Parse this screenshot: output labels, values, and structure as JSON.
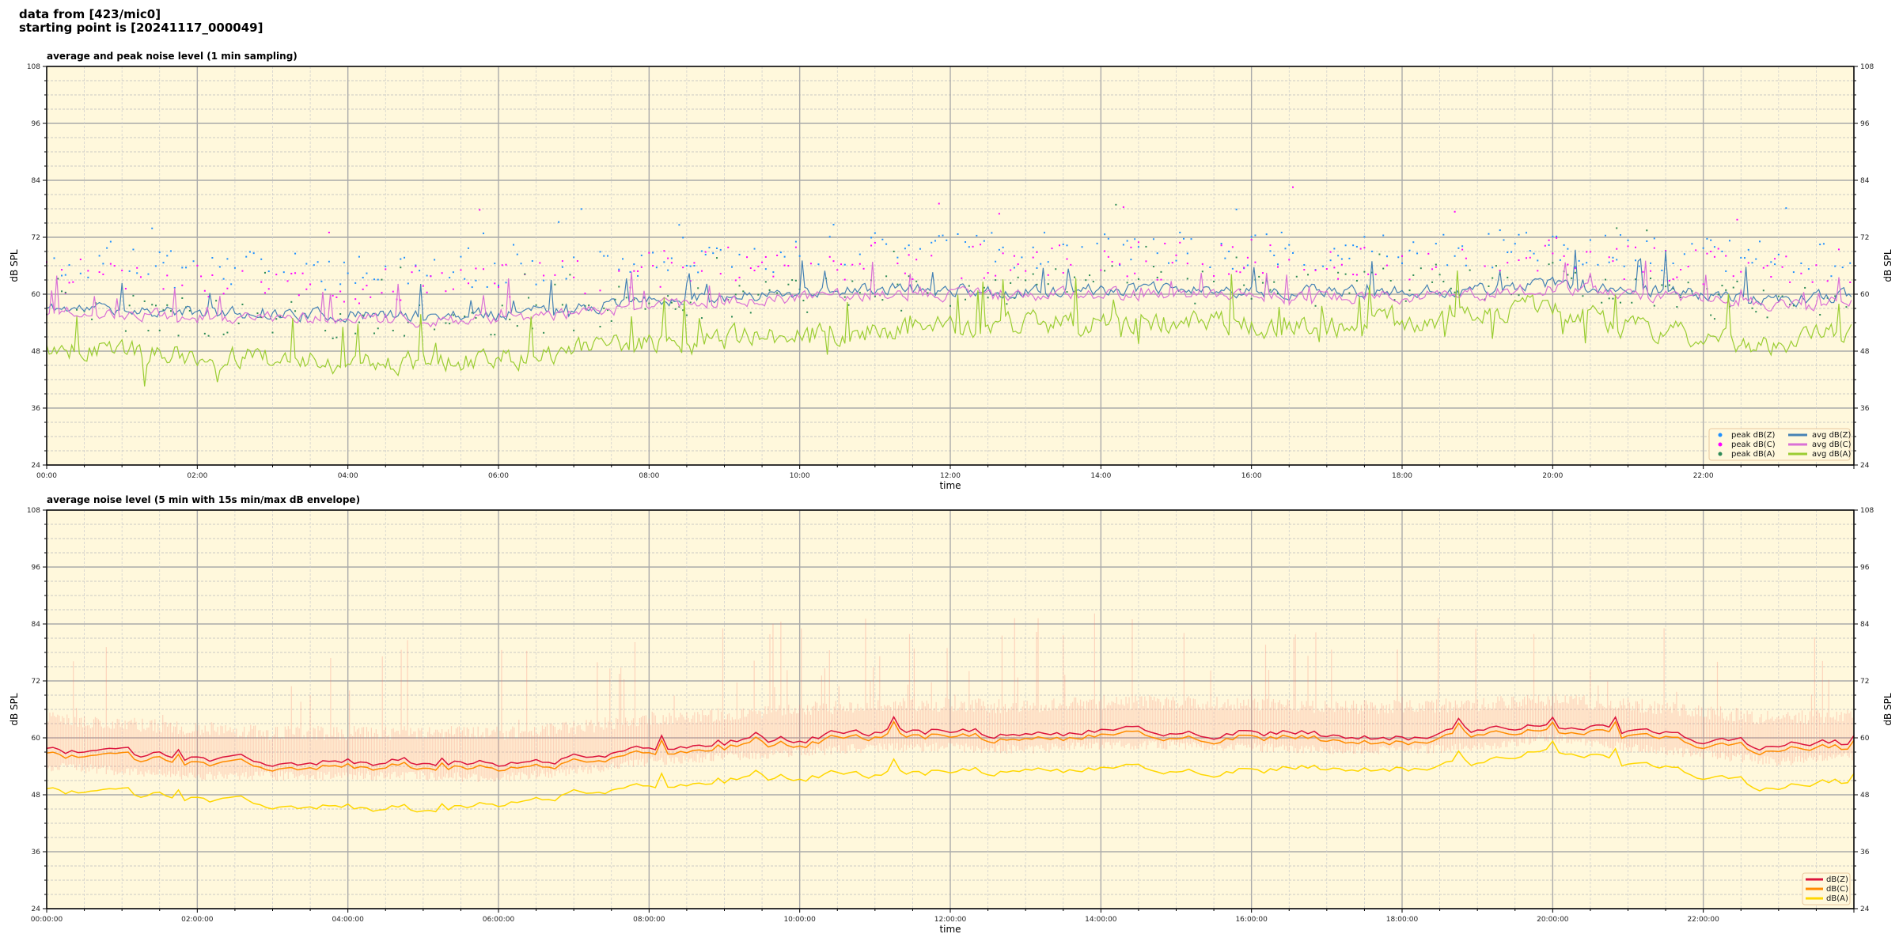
{
  "header": {
    "line1": "data from [423/mic0]",
    "line2": "starting point is [20241117_000049]"
  },
  "colors": {
    "plot_background": "#fff8dc",
    "peak_z": "#1e90ff",
    "peak_c": "#ff00ff",
    "peak_a": "#2e8b57",
    "avg_z": "#4682b4",
    "avg_c": "#da70d6",
    "avg_a": "#9acd32",
    "z": "#dc143c",
    "c": "#ff8c00",
    "a": "#ffd700",
    "envelope": "#fa8072"
  },
  "chart_data": [
    {
      "type": "line",
      "title": "average and peak noise level (1 min sampling)",
      "xlabel": "time",
      "ylabel": "dB SPL",
      "xlim_hours": [
        0,
        24
      ],
      "ylim": [
        24,
        108
      ],
      "yticks": [
        24,
        36,
        48,
        60,
        72,
        84,
        96,
        108
      ],
      "xtick_labels": [
        "00:00",
        "02:00",
        "04:00",
        "06:00",
        "08:00",
        "10:00",
        "12:00",
        "14:00",
        "16:00",
        "18:00",
        "20:00",
        "22:00"
      ],
      "grid": true,
      "legend_position": "bottom-right",
      "x_hours": [
        0,
        1,
        2,
        3,
        4,
        5,
        6,
        7,
        8,
        9,
        10,
        11,
        12,
        13,
        14,
        15,
        16,
        17,
        18,
        19,
        20,
        21,
        22,
        23,
        24
      ],
      "series": [
        {
          "name": "avg dB(Z)",
          "kind": "line",
          "color_key": "avg_z",
          "values": [
            57,
            57,
            56,
            56,
            55.5,
            55.5,
            56,
            57,
            58.5,
            59.5,
            60.5,
            61,
            61,
            60.5,
            61,
            61,
            60.5,
            60.5,
            60.5,
            61,
            62,
            61,
            60,
            58.5,
            60
          ]
        },
        {
          "name": "avg dB(C)",
          "kind": "line",
          "color_key": "avg_c",
          "values": [
            56,
            56,
            55,
            55,
            54.5,
            54.5,
            55,
            56,
            57.5,
            58.5,
            59.5,
            60,
            60,
            59.5,
            60,
            60,
            59.5,
            59.5,
            59.5,
            60,
            61.5,
            60,
            59,
            57.5,
            59
          ]
        },
        {
          "name": "avg dB(A)",
          "kind": "line",
          "color_key": "avg_a",
          "values": [
            49,
            48,
            47,
            46.5,
            45.5,
            45.5,
            46.5,
            48,
            50,
            50.5,
            51.5,
            52,
            53,
            53.5,
            54.5,
            54.5,
            53.5,
            53,
            54.5,
            55,
            58,
            53,
            51,
            48.5,
            53
          ]
        },
        {
          "name": "peak dB(Z)",
          "kind": "scatter",
          "color_key": "peak_z",
          "values": [
            66,
            66,
            65,
            65,
            64,
            64,
            65,
            66,
            67,
            68,
            69,
            69,
            69,
            69,
            69,
            69,
            69,
            69,
            69,
            69,
            70,
            69,
            68,
            67,
            68
          ]
        },
        {
          "name": "peak dB(C)",
          "kind": "scatter",
          "color_key": "peak_c",
          "values": [
            64,
            64,
            63,
            63,
            62,
            62,
            63,
            64,
            65,
            66,
            67,
            67,
            67,
            67,
            67,
            67,
            67,
            67,
            67,
            67,
            68,
            67,
            66,
            65,
            66
          ]
        },
        {
          "name": "peak dB(A)",
          "kind": "scatter",
          "color_key": "peak_a",
          "values": [
            57,
            56,
            55,
            55,
            54,
            54,
            55,
            56,
            58,
            59,
            60,
            60,
            61,
            61,
            62,
            62,
            61,
            61,
            62,
            62,
            64,
            61,
            59,
            57,
            60
          ]
        }
      ]
    },
    {
      "type": "area",
      "title": "average noise level (5 min with 15s min/max dB envelope)",
      "xlabel": "time",
      "ylabel": "dB SPL",
      "xlim_hours": [
        0,
        24
      ],
      "ylim": [
        24,
        108
      ],
      "yticks": [
        24,
        36,
        48,
        60,
        72,
        84,
        96,
        108
      ],
      "xtick_labels": [
        "00:00:00",
        "02:00:00",
        "04:00:00",
        "06:00:00",
        "08:00:00",
        "10:00:00",
        "12:00:00",
        "14:00:00",
        "16:00:00",
        "18:00:00",
        "20:00:00",
        "22:00:00"
      ],
      "grid": true,
      "legend_position": "bottom-right",
      "x_hours": [
        0,
        1,
        2,
        3,
        4,
        5,
        6,
        7,
        8,
        9,
        10,
        11,
        12,
        13,
        14,
        15,
        16,
        17,
        18,
        19,
        20,
        21,
        22,
        23,
        24
      ],
      "series": [
        {
          "name": "dB(Z)",
          "color_key": "z",
          "values": [
            57.5,
            56.5,
            55.5,
            55,
            55,
            55,
            54.5,
            56,
            58,
            59,
            60,
            61.5,
            61.5,
            60.5,
            61.5,
            61.5,
            61,
            60.5,
            60.5,
            61,
            63,
            61,
            59.5,
            58,
            59
          ]
        },
        {
          "name": "dB(C)",
          "color_key": "c",
          "values": [
            56.5,
            55.5,
            54.5,
            54,
            54,
            54,
            53.5,
            55,
            57,
            58,
            59,
            60.5,
            60.5,
            59.5,
            60.5,
            60.5,
            60,
            59.5,
            59.5,
            60,
            62,
            60,
            58.5,
            57,
            58
          ]
        },
        {
          "name": "dB(A)",
          "color_key": "a",
          "values": [
            49,
            48,
            47,
            46,
            45.5,
            45,
            46,
            48.5,
            50,
            51,
            52,
            52.5,
            53,
            53,
            53.5,
            53.5,
            53,
            53.5,
            54,
            54,
            58,
            54,
            52,
            49,
            51
          ]
        }
      ],
      "envelope": {
        "color_key": "envelope",
        "min_values": [
          54,
          53,
          52,
          52,
          52,
          52,
          51.5,
          53,
          55,
          56,
          57,
          58,
          58,
          57.5,
          58.5,
          58.5,
          58,
          57.5,
          57.5,
          58,
          60,
          58,
          56.5,
          55,
          56
        ],
        "max_values": [
          64,
          63,
          62,
          61,
          61,
          61,
          61,
          62,
          64,
          65,
          66,
          67,
          67,
          66.5,
          67.5,
          67.5,
          67,
          66.5,
          66.5,
          67,
          68,
          67,
          65.5,
          64,
          65
        ]
      }
    }
  ]
}
